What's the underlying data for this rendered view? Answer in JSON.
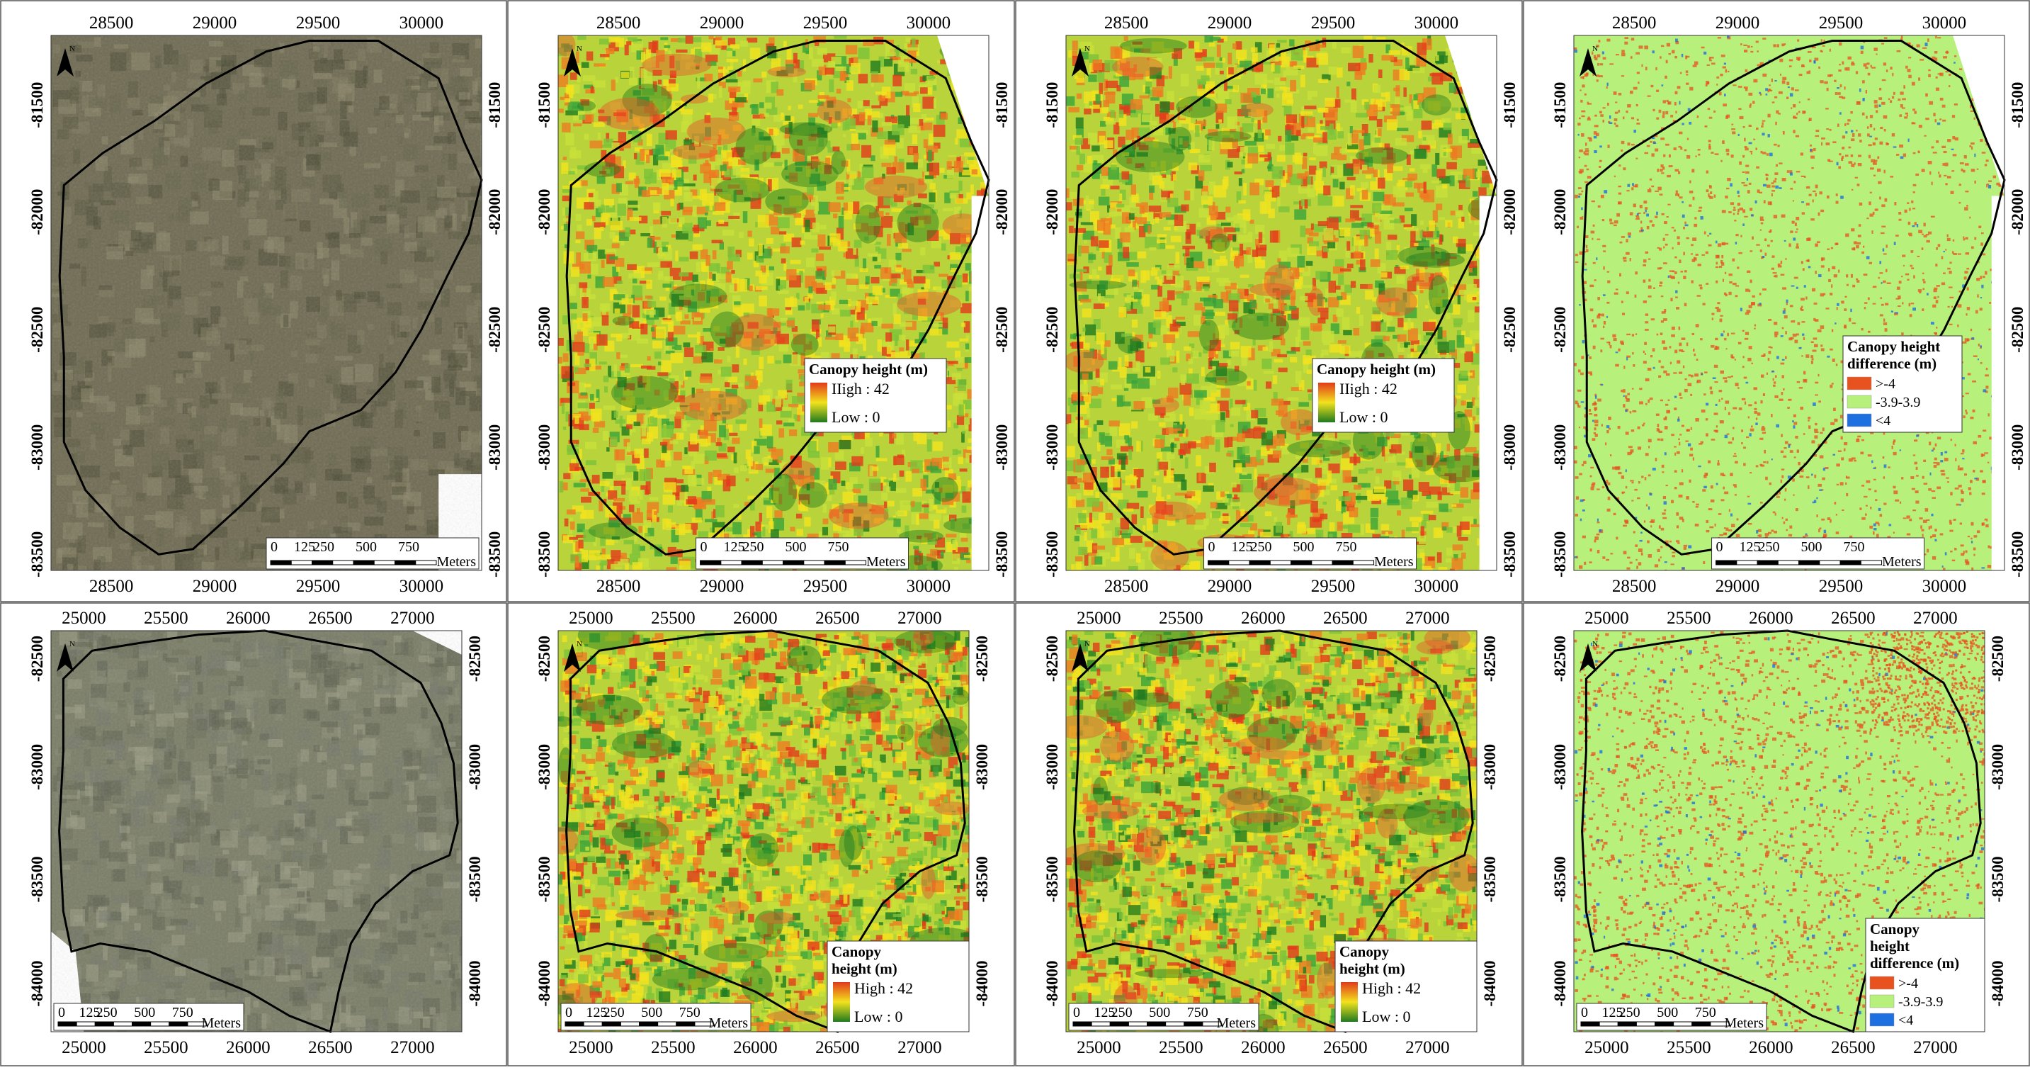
{
  "rows": [
    {
      "x_ticks": [
        "28500",
        "29000",
        "29500",
        "30000"
      ],
      "y_ticks": [
        "-81500",
        "-82000",
        "-82500",
        "-83000",
        "-83500"
      ],
      "scale_bar": {
        "ticks": [
          "0",
          "125",
          "250",
          "500",
          "750"
        ],
        "unit": "Meters"
      }
    },
    {
      "x_ticks": [
        "25000",
        "25500",
        "26000",
        "26500",
        "27000"
      ],
      "y_ticks": [
        "-82500",
        "-83000",
        "-83500",
        "-84000"
      ],
      "scale_bar": {
        "ticks": [
          "0",
          "125",
          "250",
          "500",
          "750"
        ],
        "unit": "Meters"
      }
    }
  ],
  "panels": [
    {
      "row": 0,
      "col": 0,
      "kind": "aerial",
      "legend": null
    },
    {
      "row": 0,
      "col": 1,
      "kind": "height",
      "legend": {
        "title_lines": [
          "Canopy height (m)"
        ],
        "items": [
          {
            "label": "IIigh : 42",
            "color": "#e23a1a"
          },
          {
            "label": "Low : 0",
            "color": "#1f7a1f"
          }
        ]
      }
    },
    {
      "row": 0,
      "col": 2,
      "kind": "height",
      "legend": {
        "title_lines": [
          "Canopy height (m)"
        ],
        "items": [
          {
            "label": "IIigh : 42",
            "color": "#e23a1a"
          },
          {
            "label": "Low : 0",
            "color": "#1f7a1f"
          }
        ]
      }
    },
    {
      "row": 0,
      "col": 3,
      "kind": "diff",
      "legend": {
        "title_lines": [
          "Canopy height",
          "difference (m)"
        ],
        "items": [
          {
            "label": ">-4",
            "color": "#e8521f"
          },
          {
            "label": "-3.9-3.9",
            "color": "#b7f07a"
          },
          {
            "label": "<4",
            "color": "#1e6fe0"
          }
        ]
      }
    },
    {
      "row": 1,
      "col": 0,
      "kind": "aerial",
      "legend": null
    },
    {
      "row": 1,
      "col": 1,
      "kind": "height",
      "legend": {
        "title_lines": [
          "Canopy",
          "height (m)"
        ],
        "items": [
          {
            "label": "High : 42",
            "color": "#e23a1a"
          },
          {
            "label": "Low : 0",
            "color": "#1f7a1f"
          }
        ]
      }
    },
    {
      "row": 1,
      "col": 2,
      "kind": "height",
      "legend": {
        "title_lines": [
          "Canopy",
          "height (m)"
        ],
        "items": [
          {
            "label": "High : 42",
            "color": "#e23a1a"
          },
          {
            "label": "Low : 0",
            "color": "#1f7a1f"
          }
        ]
      }
    },
    {
      "row": 1,
      "col": 3,
      "kind": "diff",
      "legend": {
        "title_lines": [
          "Canopy",
          "height",
          "difference (m)"
        ],
        "items": [
          {
            "label": ">-4",
            "color": "#e8521f"
          },
          {
            "label": "-3.9-3.9",
            "color": "#b7f07a"
          },
          {
            "label": "<4",
            "color": "#1e6fe0"
          }
        ]
      }
    }
  ],
  "north_label": "N",
  "colors": {
    "aerial_base": "#6f6a52",
    "aerial_row2_base": "#7a7d66",
    "height_high": "#e23a1a",
    "height_mid": "#f2e21e",
    "height_low": "#1f7a1f",
    "diff_base": "#b7f07a",
    "diff_pos": "#e8521f",
    "diff_neg": "#1e6fe0",
    "boundary": "#000000"
  }
}
